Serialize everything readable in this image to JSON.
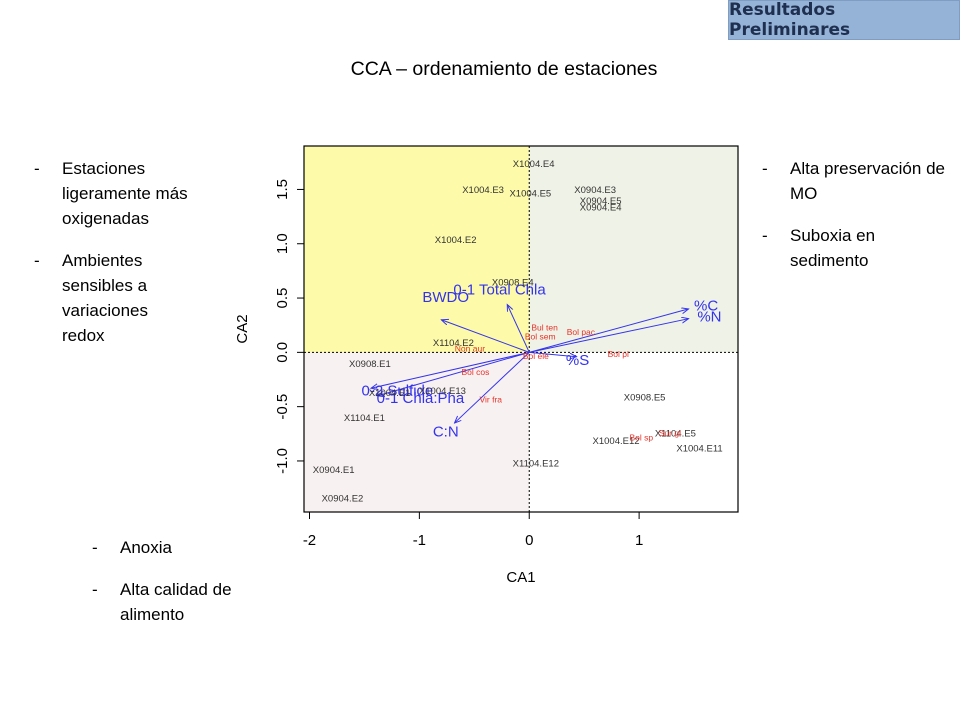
{
  "badge": {
    "label": "Resultados Preliminares"
  },
  "slide_title": "CCA – ordenamiento de estaciones",
  "notes": {
    "left_top": [
      "Estaciones ligeramente más oxigenadas",
      "Ambientes sensibles a variaciones redox"
    ],
    "right_top": [
      "Alta preservación de MO",
      "Suboxia en sedimento"
    ],
    "left_bottom": [
      "Anoxia",
      "Alta calidad de alimento"
    ]
  },
  "colors": {
    "quadrant_top_left": "#fdfba9",
    "quadrant_top_right": "#eff2e6",
    "quadrant_bottom_left": "#f8f1f1",
    "quadrant_bottom_right": "#ffffff",
    "station_labels": "#333333",
    "species_labels": "#e8332b",
    "arrows": "#3333ee",
    "badge": "#95b3d7"
  },
  "chart_data": {
    "type": "scatter",
    "subtype": "cca-triplot",
    "title": "",
    "xlabel": "CA1",
    "ylabel": "CA2",
    "xlim": [
      -2.05,
      1.9
    ],
    "ylim": [
      -1.47,
      1.9
    ],
    "xticks": [
      -2,
      -1,
      0,
      1
    ],
    "yticks": [
      -1.0,
      -0.5,
      0.0,
      0.5,
      1.0,
      1.5
    ],
    "ytick_labels": [
      "-1.0",
      "-0.5",
      "0.0",
      "0.5",
      "1.0",
      "1.5"
    ],
    "reference_lines": {
      "x": 0,
      "y": 0,
      "style": "dotted"
    },
    "stations": [
      {
        "label": "X1004.E4",
        "x": 0.04,
        "y": 1.73
      },
      {
        "label": "X1004.E3",
        "x": -0.42,
        "y": 1.49
      },
      {
        "label": "X1004.E5",
        "x": 0.01,
        "y": 1.46
      },
      {
        "label": "X0904.E3",
        "x": 0.6,
        "y": 1.49
      },
      {
        "label": "X0904.E5",
        "x": 0.65,
        "y": 1.39
      },
      {
        "label": "X0904.E4",
        "x": 0.65,
        "y": 1.33
      },
      {
        "label": "X1004.E2",
        "x": -0.67,
        "y": 1.03
      },
      {
        "label": "X0908.E4",
        "x": -0.15,
        "y": 0.64
      },
      {
        "label": "X1104.E2",
        "x": -0.69,
        "y": 0.08
      },
      {
        "label": "X0908.E1",
        "x": -1.45,
        "y": -0.11
      },
      {
        "label": "X1004.E1",
        "x": -1.27,
        "y": -0.38
      },
      {
        "label": "X1004.E13",
        "x": -0.79,
        "y": -0.36
      },
      {
        "label": "X1104.E1",
        "x": -1.5,
        "y": -0.61
      },
      {
        "label": "X0908.E5",
        "x": 1.05,
        "y": -0.42
      },
      {
        "label": "X1104.E5",
        "x": 1.33,
        "y": -0.75
      },
      {
        "label": "X1004.E12",
        "x": 0.79,
        "y": -0.82
      },
      {
        "label": "X1004.E11",
        "x": 1.55,
        "y": -0.89
      },
      {
        "label": "X1104.E12",
        "x": 0.06,
        "y": -1.03
      },
      {
        "label": "X0904.E1",
        "x": -1.78,
        "y": -1.09
      },
      {
        "label": "X0904.E2",
        "x": -1.7,
        "y": -1.35
      }
    ],
    "species": [
      {
        "label": "Bul ten",
        "x": 0.14,
        "y": 0.22
      },
      {
        "label": "Bol pac",
        "x": 0.47,
        "y": 0.18
      },
      {
        "label": "Bol sem",
        "x": 0.1,
        "y": 0.14
      },
      {
        "label": "Non aur",
        "x": -0.54,
        "y": 0.03
      },
      {
        "label": "Bol ele",
        "x": 0.06,
        "y": -0.04
      },
      {
        "label": "Bol pl",
        "x": 0.81,
        "y": -0.02
      },
      {
        "label": "Bol cos",
        "x": -0.49,
        "y": -0.19
      },
      {
        "label": "Vir fra",
        "x": -0.35,
        "y": -0.44
      },
      {
        "label": "Bol sp",
        "x": 1.02,
        "y": -0.79
      },
      {
        "label": "Sur gl",
        "x": 1.28,
        "y": -0.75
      }
    ],
    "vectors": [
      {
        "label": "%C",
        "x": 1.45,
        "y": 0.4,
        "label_x": 1.61,
        "label_y": 0.42
      },
      {
        "label": "%N",
        "x": 1.45,
        "y": 0.31,
        "label_x": 1.64,
        "label_y": 0.32
      },
      {
        "label": "%S",
        "x": 0.43,
        "y": -0.04,
        "label_x": 0.44,
        "label_y": -0.08
      },
      {
        "label": "C:N",
        "x": -0.68,
        "y": -0.65,
        "label_x": -0.76,
        "label_y": -0.74
      },
      {
        "label": "0-2 Sulfide",
        "x": -1.44,
        "y": -0.33,
        "label_x": -1.2,
        "label_y": -0.36
      },
      {
        "label": "0-1 Chla:Pha",
        "x": -1.38,
        "y": -0.4,
        "label_x": -0.99,
        "label_y": -0.43
      },
      {
        "label": "0-1 Total Chla",
        "x": -0.2,
        "y": 0.44,
        "label_x": -0.27,
        "label_y": 0.57
      },
      {
        "label": "BWDO",
        "x": -0.8,
        "y": 0.3,
        "label_x": -0.76,
        "label_y": 0.5
      }
    ]
  }
}
